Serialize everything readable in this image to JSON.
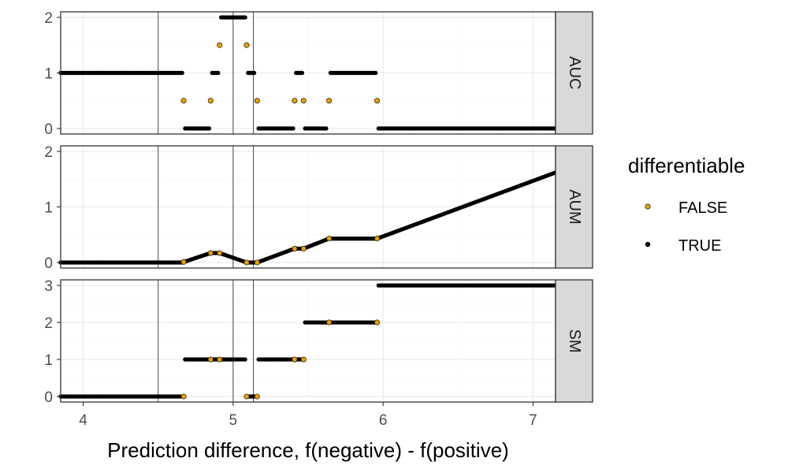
{
  "chart_data": {
    "type": "scatter",
    "facet_layout": "rows",
    "xlabel": "Prediction difference, f(negative) - f(positive)",
    "xlim": [
      3.85,
      7.15
    ],
    "x_ticks": [
      4,
      5,
      6,
      7
    ],
    "x_tick_labels": [
      "4",
      "5",
      "6",
      "7"
    ],
    "vlines": [
      4.5,
      5.0,
      5.135
    ],
    "grid": true,
    "legend": {
      "title": "differentiable",
      "position": "right",
      "entries": [
        {
          "label": "FALSE",
          "color": "#E69F00"
        },
        {
          "label": "TRUE",
          "color": "#000000"
        }
      ]
    },
    "series_colors": {
      "FALSE": "#E69F00",
      "TRUE": "#000000"
    },
    "panels": [
      {
        "strip": "AUC",
        "ylim": [
          -0.1,
          2.1
        ],
        "y_ticks": [
          0,
          1,
          2
        ],
        "y_tick_labels": [
          "0",
          "1",
          "2"
        ],
        "true_segments": [
          {
            "x": [
              3.85,
              4.66
            ],
            "y": [
              1,
              1
            ]
          },
          {
            "x": [
              4.68,
              4.84
            ],
            "y": [
              0,
              0
            ]
          },
          {
            "x": [
              4.86,
              4.9
            ],
            "y": [
              1,
              1
            ]
          },
          {
            "x": [
              4.92,
              5.08
            ],
            "y": [
              2,
              2
            ]
          },
          {
            "x": [
              5.1,
              5.14
            ],
            "y": [
              1,
              1
            ]
          },
          {
            "x": [
              5.17,
              5.4
            ],
            "y": [
              0,
              0
            ]
          },
          {
            "x": [
              5.42,
              5.46
            ],
            "y": [
              1,
              1
            ]
          },
          {
            "x": [
              5.48,
              5.62
            ],
            "y": [
              0,
              0
            ]
          },
          {
            "x": [
              5.65,
              5.95
            ],
            "y": [
              1,
              1
            ]
          },
          {
            "x": [
              5.97,
              7.15
            ],
            "y": [
              0,
              0
            ]
          }
        ],
        "false_points": [
          {
            "x": 4.67,
            "y": 0.5
          },
          {
            "x": 4.85,
            "y": 0.5
          },
          {
            "x": 4.91,
            "y": 1.5
          },
          {
            "x": 5.09,
            "y": 1.5
          },
          {
            "x": 5.16,
            "y": 0.5
          },
          {
            "x": 5.41,
            "y": 0.5
          },
          {
            "x": 5.47,
            "y": 0.5
          },
          {
            "x": 5.64,
            "y": 0.5
          },
          {
            "x": 5.96,
            "y": 0.5
          }
        ]
      },
      {
        "strip": "AUM",
        "ylim": [
          -0.1,
          2.1
        ],
        "y_ticks": [
          0,
          1,
          2
        ],
        "y_tick_labels": [
          "0",
          "1",
          "2"
        ],
        "true_segments": [
          {
            "x": [
              3.85,
              4.66
            ],
            "y": [
              0,
              0
            ]
          },
          {
            "x": [
              4.66,
              4.85
            ],
            "y": [
              0,
              0.17
            ]
          },
          {
            "x": [
              4.85,
              4.91
            ],
            "y": [
              0.17,
              0.17
            ]
          },
          {
            "x": [
              4.91,
              5.09
            ],
            "y": [
              0.17,
              0.0
            ]
          },
          {
            "x": [
              5.09,
              5.16
            ],
            "y": [
              0.0,
              0.0
            ]
          },
          {
            "x": [
              5.16,
              5.41
            ],
            "y": [
              0.0,
              0.25
            ]
          },
          {
            "x": [
              5.41,
              5.47
            ],
            "y": [
              0.25,
              0.25
            ]
          },
          {
            "x": [
              5.47,
              5.64
            ],
            "y": [
              0.25,
              0.43
            ]
          },
          {
            "x": [
              5.64,
              5.96
            ],
            "y": [
              0.43,
              0.43
            ]
          },
          {
            "x": [
              5.96,
              7.15
            ],
            "y": [
              0.43,
              1.62
            ]
          }
        ],
        "false_points": [
          {
            "x": 4.67,
            "y": 0.01
          },
          {
            "x": 4.85,
            "y": 0.17
          },
          {
            "x": 4.91,
            "y": 0.17
          },
          {
            "x": 5.09,
            "y": 0.0
          },
          {
            "x": 5.16,
            "y": 0.0
          },
          {
            "x": 5.41,
            "y": 0.25
          },
          {
            "x": 5.47,
            "y": 0.25
          },
          {
            "x": 5.64,
            "y": 0.43
          },
          {
            "x": 5.96,
            "y": 0.43
          }
        ]
      },
      {
        "strip": "SM",
        "ylim": [
          -0.15,
          3.15
        ],
        "y_ticks": [
          0,
          1,
          2,
          3
        ],
        "y_tick_labels": [
          "0",
          "1",
          "2",
          "3"
        ],
        "true_segments": [
          {
            "x": [
              3.85,
              4.66
            ],
            "y": [
              0,
              0
            ]
          },
          {
            "x": [
              4.68,
              5.08
            ],
            "y": [
              1,
              1
            ]
          },
          {
            "x": [
              5.1,
              5.14
            ],
            "y": [
              0,
              0
            ]
          },
          {
            "x": [
              5.17,
              5.46
            ],
            "y": [
              1,
              1
            ]
          },
          {
            "x": [
              5.48,
              5.95
            ],
            "y": [
              2,
              2
            ]
          },
          {
            "x": [
              5.97,
              7.15
            ],
            "y": [
              3,
              3
            ]
          }
        ],
        "false_points": [
          {
            "x": 4.67,
            "y": 0
          },
          {
            "x": 4.85,
            "y": 1
          },
          {
            "x": 4.91,
            "y": 1
          },
          {
            "x": 5.09,
            "y": 0
          },
          {
            "x": 5.16,
            "y": 0
          },
          {
            "x": 5.41,
            "y": 1
          },
          {
            "x": 5.47,
            "y": 1
          },
          {
            "x": 5.64,
            "y": 2
          },
          {
            "x": 5.96,
            "y": 2
          }
        ]
      }
    ]
  }
}
